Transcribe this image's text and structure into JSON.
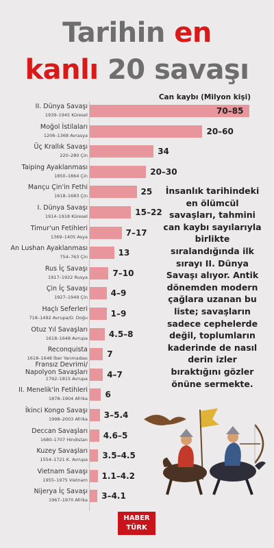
{
  "title": {
    "line1_a": "Tarihin ",
    "line1_b": "en",
    "line2_a": "kanlı",
    "line2_b": " 20 savaşı"
  },
  "unit_label": "Can kaybı (Milyon kişi)",
  "description": "İnsanlık tarihindeki en ölümcül savaşları, tahmini can kaybı sayılarıyla birlikte sıralandığında ilk sırayı II. Dünya Savaşı alıyor. Antik dönemden modern çağlara uzanan bu liste; savaşların sadece cephelerde değil, toplumların kaderinde de nasıl derin izler bıraktığını gözler önüne sermekte.",
  "logo": {
    "line1": "HABER",
    "line2": "TÜRK"
  },
  "colors": {
    "bar": "#e8969b",
    "accent": "#d91a1a",
    "title_gray": "#6e6e6e"
  },
  "chart_data": {
    "type": "bar",
    "orientation": "horizontal",
    "ylabel": "Can kaybı (Milyon kişi)",
    "categories": [
      "II. Dünya Savaşı",
      "Moğol İstilaları",
      "Üç Krallık Savaşı",
      "Taiping Ayaklanması",
      "Mançu Çin'in Fethi",
      "I. Dünya Savaşı",
      "Timur'un Fetihleri",
      "An Lushan Ayaklanması",
      "Rus İç Savaşı",
      "Çin İç Savaşı",
      "Haçlı Seferleri",
      "Otuz Yıl Savaşları",
      "Reconquista",
      "Fransız Devrimi/ Napolyon Savaşları",
      "II. Menelik'in Fetihleri",
      "İkinci Kongo Savaşı",
      "Deccan Savaşları",
      "Kuzey Savaşları",
      "Vietnam Savaşı",
      "Nijerya İç Savaşı"
    ],
    "details": [
      "1939–1945 Küresel",
      "1206–1368 Avrasya",
      "220–280 Çin",
      "1850–1864 Çin",
      "1618–1683 Çin",
      "1914–1918 Küresel",
      "1369–1405 Asya",
      "754–763 Çin",
      "1917–1922 Rusya",
      "1927–1949 Çin",
      "718–1492 Avrupa/O. Doğu",
      "1618–1648 Avrupa",
      "1618–1648 İber Yarımadası",
      "1792–1815 Avrupa",
      "1878–1904 Afrika",
      "1998–2003 Afrika",
      "1680–1707 Hindistan",
      "1554–1721 K. Avrupa",
      "1955–1975 Vietnam",
      "1967–1970 Afrika"
    ],
    "labels": [
      "70–85",
      "20–60",
      "34",
      "20–30",
      "25",
      "15–22",
      "7–17",
      "13",
      "7–10",
      "4–9",
      "1–9",
      "4.5–8",
      "7",
      "4–7",
      "6",
      "3–5.4",
      "4.6–5",
      "3.5–4.5",
      "1.1–4.2",
      "3–4.1"
    ],
    "values": [
      85,
      60,
      34,
      30,
      25,
      22,
      17,
      13,
      10,
      9,
      9,
      8,
      7,
      7,
      6,
      5.4,
      5,
      4.5,
      4.2,
      4.1
    ],
    "xlim": [
      0,
      85
    ]
  }
}
